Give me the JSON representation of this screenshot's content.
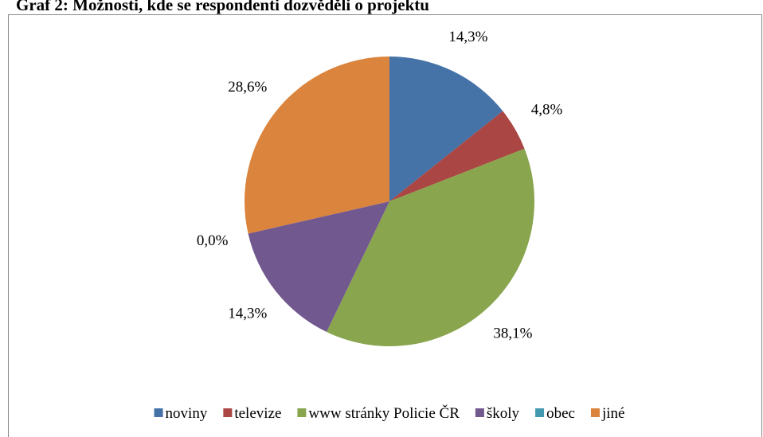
{
  "chart_data": {
    "type": "pie",
    "title": "Graf 2: Možnosti, kde se respondenti dozvěděli o projektu",
    "categories": [
      "noviny",
      "televize",
      "www stránky Policie ČR",
      "školy",
      "obec",
      "jiné"
    ],
    "values": [
      14.3,
      4.8,
      38.1,
      14.3,
      0.0,
      28.6
    ],
    "value_labels": [
      "14,3%",
      "4,8%",
      "38,1%",
      "14,3%",
      "0,0%",
      "28,6%"
    ],
    "colors": [
      "#4572a7",
      "#aa4643",
      "#89a54e",
      "#71588f",
      "#4198af",
      "#db843d"
    ],
    "legend": "bottom"
  }
}
